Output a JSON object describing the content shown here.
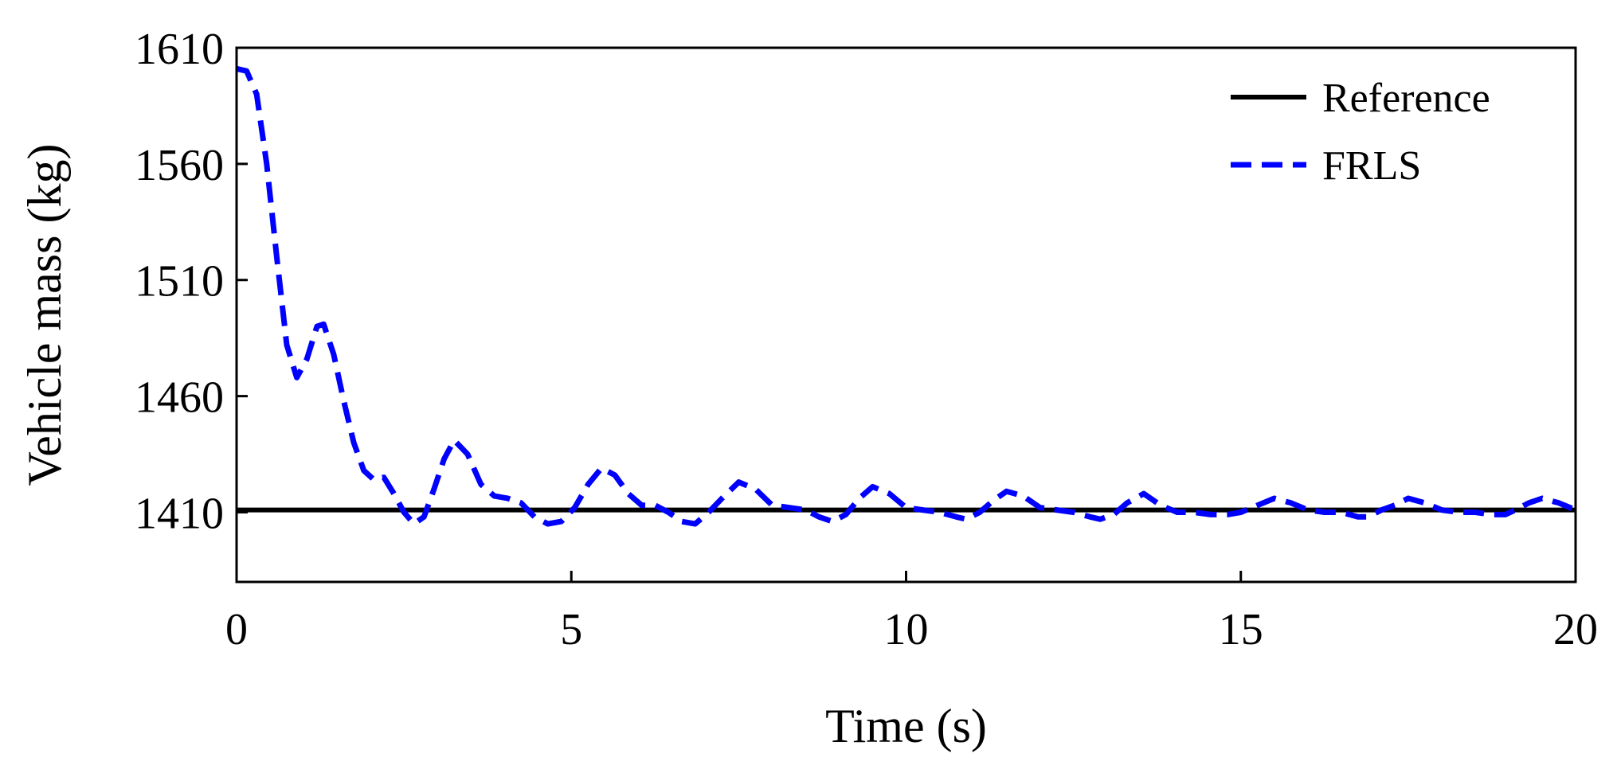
{
  "chart_data": {
    "type": "line",
    "xlabel": "Time (s)",
    "ylabel": "Vehicle mass (kg)",
    "xlim": [
      0,
      20
    ],
    "ylim": [
      1380,
      1610
    ],
    "xticks": [
      0,
      5,
      10,
      15,
      20
    ],
    "yticks": [
      1410,
      1460,
      1510,
      1560,
      1610
    ],
    "grid": false,
    "legend_position": "top-right",
    "series": [
      {
        "name": "Reference",
        "color": "#000000",
        "style": "solid",
        "x": [
          0,
          20
        ],
        "y": [
          1411,
          1411
        ]
      },
      {
        "name": "FRLS",
        "color": "#0000ff",
        "style": "dashed",
        "x": [
          0,
          0.15,
          0.3,
          0.45,
          0.6,
          0.75,
          0.9,
          1.05,
          1.2,
          1.3,
          1.45,
          1.6,
          1.75,
          1.9,
          2.05,
          2.2,
          2.35,
          2.5,
          2.65,
          2.8,
          2.95,
          3.1,
          3.25,
          3.45,
          3.65,
          3.85,
          4.05,
          4.25,
          4.45,
          4.65,
          4.85,
          5.05,
          5.25,
          5.45,
          5.65,
          5.85,
          6.05,
          6.25,
          6.45,
          6.65,
          6.85,
          7.05,
          7.25,
          7.5,
          7.75,
          8.0,
          8.25,
          8.5,
          8.7,
          8.9,
          9.1,
          9.3,
          9.5,
          9.75,
          10.0,
          10.25,
          10.5,
          10.75,
          10.9,
          11.1,
          11.3,
          11.5,
          11.75,
          12.0,
          12.25,
          12.5,
          12.75,
          12.9,
          13.1,
          13.3,
          13.55,
          13.8,
          14.05,
          14.3,
          14.55,
          14.8,
          15.0,
          15.25,
          15.5,
          15.75,
          16.0,
          16.25,
          16.5,
          16.75,
          16.9,
          17.1,
          17.3,
          17.5,
          17.75,
          18.0,
          18.25,
          18.5,
          18.75,
          18.95,
          19.1,
          19.3,
          19.5,
          19.75,
          20.0
        ],
        "y": [
          1601,
          1600,
          1590,
          1560,
          1520,
          1482,
          1468,
          1476,
          1490,
          1491,
          1478,
          1458,
          1440,
          1428,
          1424,
          1425,
          1418,
          1410,
          1405,
          1408,
          1420,
          1433,
          1441,
          1435,
          1422,
          1417,
          1416,
          1414,
          1408,
          1405,
          1406,
          1412,
          1422,
          1429,
          1426,
          1418,
          1413,
          1413,
          1410,
          1406,
          1405,
          1410,
          1416,
          1423,
          1420,
          1413,
          1412,
          1411,
          1408,
          1406,
          1409,
          1416,
          1421,
          1418,
          1412,
          1411,
          1410,
          1408,
          1407,
          1410,
          1415,
          1419,
          1417,
          1412,
          1411,
          1410,
          1408,
          1407,
          1409,
          1414,
          1418,
          1413,
          1410,
          1410,
          1409,
          1409,
          1410,
          1413,
          1416,
          1414,
          1411,
          1410,
          1410,
          1408,
          1408,
          1411,
          1413,
          1416,
          1414,
          1411,
          1410,
          1410,
          1409,
          1409,
          1411,
          1414,
          1416,
          1414,
          1411
        ]
      }
    ]
  }
}
